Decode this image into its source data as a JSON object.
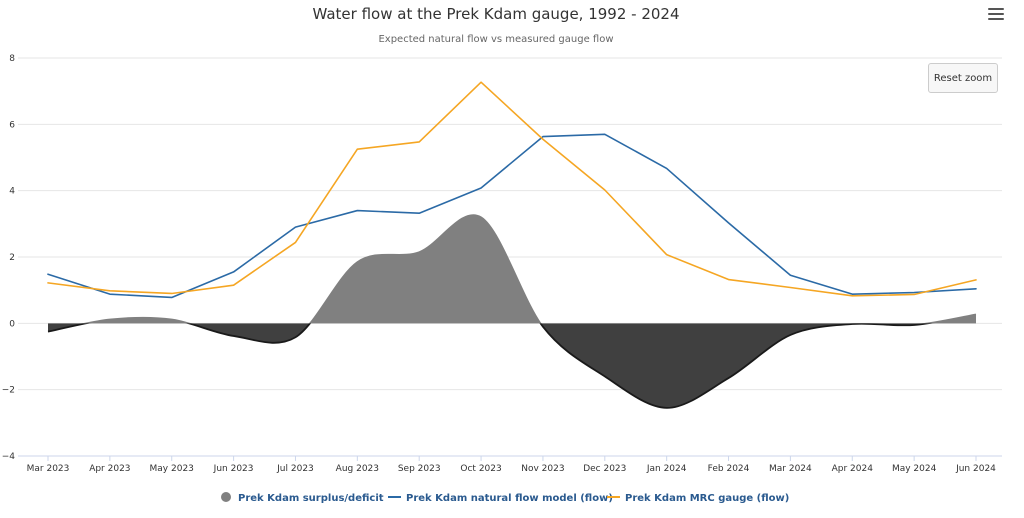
{
  "chart_data": {
    "type": "line",
    "title": "Water flow at the Prek Kdam gauge, 1992 - 2024",
    "subtitle": "Expected natural flow vs measured gauge flow",
    "categories": [
      "Mar 2023",
      "Apr 2023",
      "May 2023",
      "Jun 2023",
      "Jul 2023",
      "Aug 2023",
      "Sep 2023",
      "Oct 2023",
      "Nov 2023",
      "Dec 2023",
      "Jan 2024",
      "Feb 2024",
      "Mar 2024",
      "Apr 2024",
      "May 2024",
      "Jun 2024"
    ],
    "ylim": [
      -4,
      8
    ],
    "yticks": [
      -4,
      -2,
      0,
      2,
      4,
      6,
      8
    ],
    "ytick_labels": [
      "−4",
      "−2",
      "0",
      "2",
      "4",
      "6",
      "8"
    ],
    "grid": true,
    "legend_position": "bottom-center",
    "series": [
      {
        "name": "Prek Kdam surplus/deficit",
        "type": "area",
        "values": [
          -0.25,
          0.12,
          0.12,
          -0.38,
          -0.42,
          1.85,
          2.15,
          3.2,
          -0.1,
          -1.6,
          -2.55,
          -1.65,
          -0.35,
          -0.02,
          -0.05,
          0.27
        ],
        "positive_color": "#808080",
        "negative_color": "#404040",
        "line_color": "#1a1a1a"
      },
      {
        "name": "Prek Kdam natural flow model (flow)",
        "type": "line",
        "values": [
          1.48,
          0.88,
          0.78,
          1.55,
          2.9,
          3.4,
          3.32,
          4.08,
          5.63,
          5.7,
          4.67,
          3.03,
          1.45,
          0.88,
          0.93,
          1.04
        ],
        "color": "#2b6aa6"
      },
      {
        "name": "Prek Kdam MRC gauge (flow)",
        "type": "line",
        "values": [
          1.22,
          0.98,
          0.9,
          1.15,
          2.44,
          5.25,
          5.47,
          7.27,
          5.55,
          4.02,
          2.07,
          1.32,
          1.08,
          0.83,
          0.87,
          1.31
        ],
        "color": "#f5a623"
      }
    ]
  },
  "controls": {
    "reset_zoom_label": "Reset zoom",
    "menu_icon": "hamburger-icon"
  }
}
